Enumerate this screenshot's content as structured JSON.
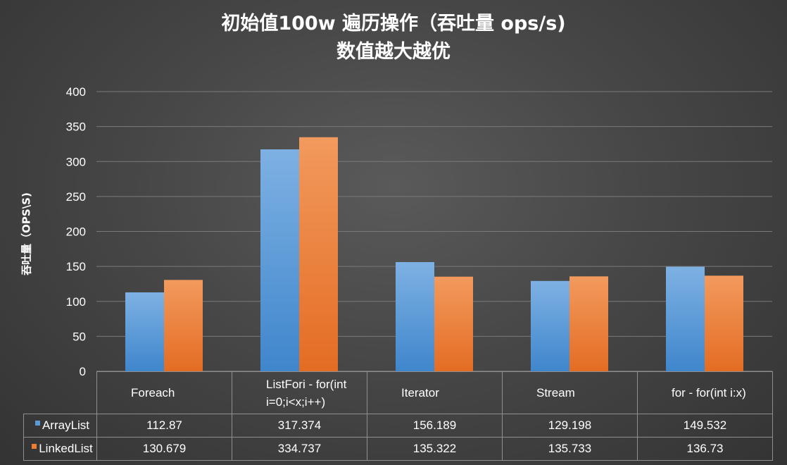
{
  "chart_data": {
    "type": "bar",
    "title": [
      "初始值100w 遍历操作（吞吐量 ops/s)",
      "数值越大越优"
    ],
    "ylabel": "吞吐量（OPS\\S)",
    "ylim": [
      0,
      400
    ],
    "yticks": [
      0,
      50,
      100,
      150,
      200,
      250,
      300,
      350,
      400
    ],
    "grid": true,
    "categories": [
      "Foreach",
      "ListFori - for(int i=0;i<x;i++)",
      "Iterator",
      "Stream",
      "for - for(int i:x)"
    ],
    "series": [
      {
        "name": "ArrayList",
        "color": "#5b9bd5",
        "values": [
          112.87,
          317.374,
          156.189,
          129.198,
          149.532
        ]
      },
      {
        "name": "LinkedList",
        "color": "#ed7d31",
        "values": [
          130.679,
          334.737,
          135.322,
          135.733,
          136.73
        ]
      }
    ],
    "data_table": {
      "headers": [
        "Foreach",
        "ListFori - for(int i=0;i<x;i++)",
        "Iterator",
        "Stream",
        "for - for(int i:x)"
      ],
      "rows": [
        {
          "label": "ArrayList",
          "cells": [
            "112.87",
            "317.374",
            "156.189",
            "129.198",
            "149.532"
          ]
        },
        {
          "label": "LinkedList",
          "cells": [
            "130.679",
            "334.737",
            "135.322",
            "135.733",
            "136.73"
          ]
        }
      ]
    }
  }
}
